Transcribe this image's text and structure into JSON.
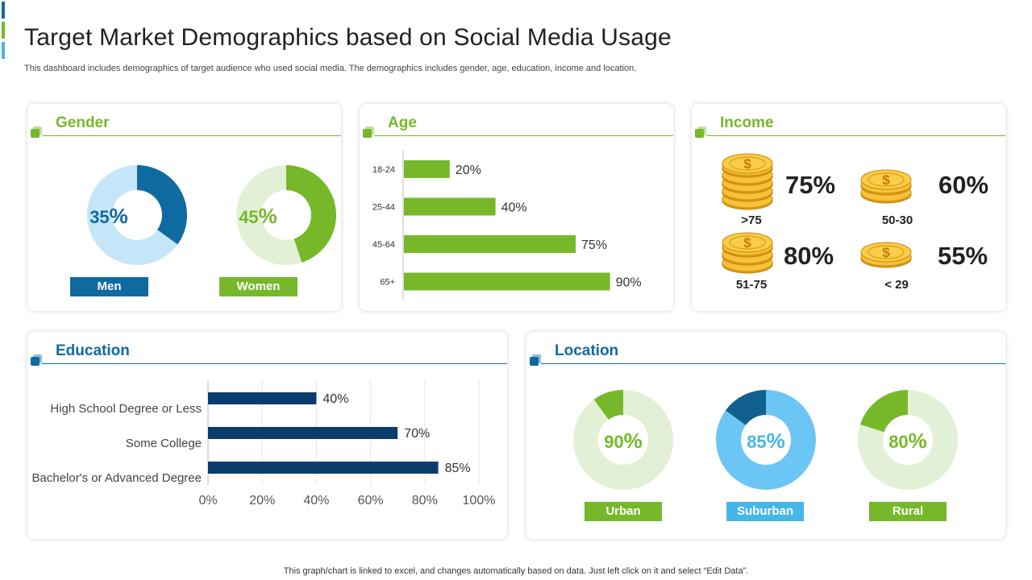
{
  "header": {
    "title": "Target Market Demographics based on Social Media Usage",
    "subtitle": "This dashboard includes demographics of target audience who used social media. The demographics includes gender, age, education, income and location."
  },
  "footer": {
    "note": "This graph/chart is linked to excel, and changes automatically based on data. Just left click on it and select “Edit Data”."
  },
  "colors": {
    "green": "#76b82a",
    "blue": "#0f6aa1",
    "navy": "#0a3d6e",
    "light_green": "#e2f1d6",
    "light_blue": "#c5e6f9",
    "sky": "#6cc6f5",
    "dark_blue": "#11608f"
  },
  "gender": {
    "title": "Gender",
    "men": {
      "label": "Men",
      "value": "35",
      "unit": "%"
    },
    "women": {
      "label": "Women",
      "value": "45",
      "unit": "%"
    }
  },
  "age": {
    "title": "Age"
  },
  "income": {
    "title": "Income",
    "items": [
      {
        "value": "75%",
        "label": ">75",
        "icon": "coin-stack-icon"
      },
      {
        "value": "60%",
        "label": "50-30",
        "icon": "coin-stack-icon"
      },
      {
        "value": "80%",
        "label": "51-75",
        "icon": "coin-stack-icon"
      },
      {
        "value": "55%",
        "label": "< 29",
        "icon": "coin-stack-icon"
      }
    ]
  },
  "education": {
    "title": "Education"
  },
  "location": {
    "title": "Location",
    "urban": {
      "label": "Urban",
      "value": "90",
      "unit": "%"
    },
    "suburban": {
      "label": "Suburban",
      "value": "85",
      "unit": "%"
    },
    "rural": {
      "label": "Rural",
      "value": "80",
      "unit": "%"
    }
  },
  "chart_data": [
    {
      "type": "pie",
      "title": "Gender - Men",
      "values": [
        35,
        65
      ]
    },
    {
      "type": "pie",
      "title": "Gender - Women",
      "values": [
        45,
        55
      ]
    },
    {
      "type": "bar",
      "title": "Age",
      "orientation": "horizontal",
      "categories": [
        "18-24",
        "25-44",
        "45-64",
        "65+"
      ],
      "values": [
        20,
        40,
        75,
        90
      ],
      "value_labels": [
        "20%",
        "40%",
        "75%",
        "90%"
      ],
      "xlim": [
        0,
        100
      ]
    },
    {
      "type": "bar",
      "title": "Education",
      "orientation": "horizontal",
      "categories": [
        "High School Degree or Less",
        "Some College",
        "Bachelor's or Advanced Degree"
      ],
      "values": [
        40,
        70,
        85
      ],
      "value_labels": [
        "40%",
        "70%",
        "85%"
      ],
      "xlim": [
        0,
        100
      ],
      "xticks": [
        "0%",
        "20%",
        "40%",
        "60%",
        "80%",
        "100%"
      ],
      "grid": true
    },
    {
      "type": "pie",
      "title": "Location - Urban",
      "values": [
        90,
        10
      ]
    },
    {
      "type": "pie",
      "title": "Location - Suburban",
      "values": [
        85,
        15
      ]
    },
    {
      "type": "pie",
      "title": "Location - Rural",
      "values": [
        80,
        20
      ]
    }
  ]
}
